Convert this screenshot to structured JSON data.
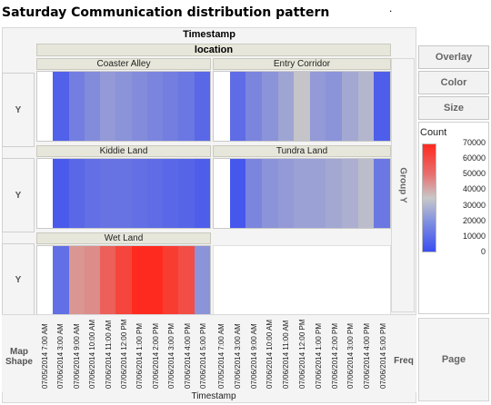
{
  "title": "Saturday Communication distribution pattern",
  "corner_mark": ".",
  "timestamp_top": "Timestamp",
  "location_header": "location",
  "y_label": "Y",
  "map_shape": "Map Shape",
  "freq_label": "Freq",
  "group_y_label": "Group Y",
  "timestamp_bottom": "Timestamp",
  "buttons": {
    "overlay": "Overlay",
    "color": "Color",
    "size": "Size",
    "page": "Page"
  },
  "legend": {
    "title": "Count",
    "ticks": [
      "70000",
      "60000",
      "50000",
      "40000",
      "30000",
      "20000",
      "10000",
      "0"
    ]
  },
  "x_ticks": [
    "07/05/2014 7:00 AM",
    "07/06/2014 3:00 AM",
    "07/06/2014 9:00 AM",
    "07/06/2014 10:00 AM",
    "07/06/2014 11:00 AM",
    "07/06/2014 12:00 PM",
    "07/06/2014 1:00 PM",
    "07/06/2014 2:00 PM",
    "07/06/2014 3:00 PM",
    "07/06/2014 4:00 PM",
    "07/06/2014 5:00 PM"
  ],
  "chart_data": {
    "type": "heatmap",
    "color_scale": {
      "min": 0,
      "max": 70000,
      "low_color": "#3a4cf0",
      "mid_color": "#c8c8c8",
      "high_color": "#ff2a1f"
    },
    "panels": [
      {
        "name": "Coaster Alley",
        "values": [
          null,
          6000,
          14000,
          18000,
          22000,
          20000,
          18000,
          16000,
          14000,
          12000,
          8000
        ]
      },
      {
        "name": "Entry Corridor",
        "values": [
          null,
          9000,
          16000,
          20000,
          25000,
          34000,
          22000,
          20000,
          26000,
          30000,
          5000
        ]
      },
      {
        "name": "Kiddie Land",
        "values": [
          null,
          4000,
          8000,
          10000,
          11000,
          11000,
          10000,
          9000,
          8000,
          7000,
          5000
        ]
      },
      {
        "name": "Tundra Land",
        "values": [
          null,
          3000,
          16000,
          20000,
          22000,
          24000,
          24000,
          26000,
          28000,
          32000,
          12000
        ]
      },
      {
        "name": "Wet Land",
        "values": [
          null,
          10000,
          46000,
          48000,
          58000,
          64000,
          70000,
          70000,
          66000,
          62000,
          20000
        ]
      }
    ]
  }
}
